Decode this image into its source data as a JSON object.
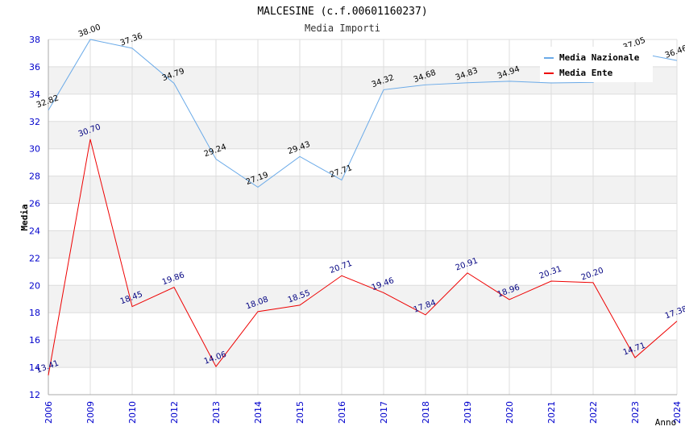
{
  "chart_data": {
    "type": "line",
    "title": "MALCESINE (c.f.00601160237)",
    "subtitle": "Media Importi",
    "xlabel": "Anno",
    "ylabel": "Media",
    "ylim": [
      12,
      38
    ],
    "yticks": [
      12,
      14,
      16,
      18,
      20,
      22,
      24,
      26,
      28,
      30,
      32,
      34,
      36,
      38
    ],
    "categories": [
      "2006",
      "2009",
      "2010",
      "2012",
      "2013",
      "2014",
      "2015",
      "2016",
      "2017",
      "2018",
      "2019",
      "2020",
      "2021",
      "2022",
      "2023",
      "2024"
    ],
    "series": [
      {
        "name": "Media Nazionale",
        "color": "#6aaae8",
        "labelColor": "#000000",
        "values": [
          32.82,
          38.0,
          37.36,
          34.79,
          29.24,
          27.19,
          29.43,
          27.71,
          34.32,
          34.68,
          34.83,
          34.94,
          34.82,
          34.86,
          37.05,
          36.46
        ],
        "labels": [
          "32.82",
          "38.00",
          "37.36",
          "34.79",
          "29.24",
          "27.19",
          "29.43",
          "27.71",
          "34.32",
          "34.68",
          "34.83",
          "34.94",
          "",
          "",
          "37.05",
          "36.46"
        ]
      },
      {
        "name": "Media Ente",
        "color": "#ee0000",
        "labelColor": "#000080",
        "values": [
          13.41,
          30.7,
          18.45,
          19.86,
          14.06,
          18.08,
          18.55,
          20.71,
          19.46,
          17.84,
          20.91,
          18.96,
          20.31,
          20.2,
          14.71,
          17.38
        ],
        "labels": [
          "13.41",
          "30.70",
          "18.45",
          "19.86",
          "14.06",
          "18.08",
          "18.55",
          "20.71",
          "19.46",
          "17.84",
          "20.91",
          "18.96",
          "20.31",
          "20.20",
          "14.71",
          "17.38"
        ]
      }
    ],
    "legend": "top-right",
    "grid": true
  }
}
